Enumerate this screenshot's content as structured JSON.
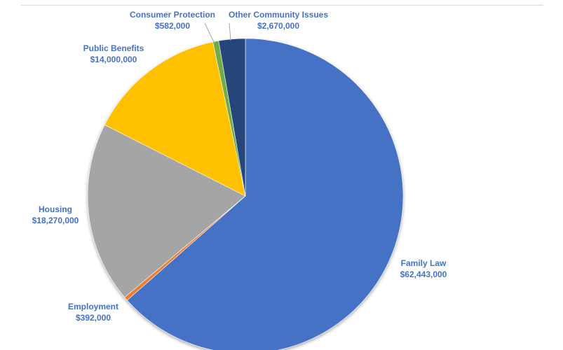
{
  "chart_data": {
    "type": "pie",
    "title": "",
    "slices": [
      {
        "name": "Family Law",
        "value": 62443000,
        "label": "$62,443,000",
        "color": "#4472C4"
      },
      {
        "name": "Employment",
        "value": 392000,
        "label": "$392,000",
        "color": "#ED7D31"
      },
      {
        "name": "Housing",
        "value": 18270000,
        "label": "$18,270,000",
        "color": "#A5A5A5"
      },
      {
        "name": "Public Benefits",
        "value": 14000000,
        "label": "$14,000,000",
        "color": "#FFC000"
      },
      {
        "name": "Consumer Protection",
        "value": 582000,
        "label": "$582,000",
        "color": "#70AD47"
      },
      {
        "name": "Other Community Issues",
        "value": 2670000,
        "label": "$2,670,000",
        "color": "#264478"
      }
    ],
    "start_angle": "12 o'clock",
    "direction": "clockwise",
    "label_color": "#4472C4",
    "legend": "none"
  }
}
